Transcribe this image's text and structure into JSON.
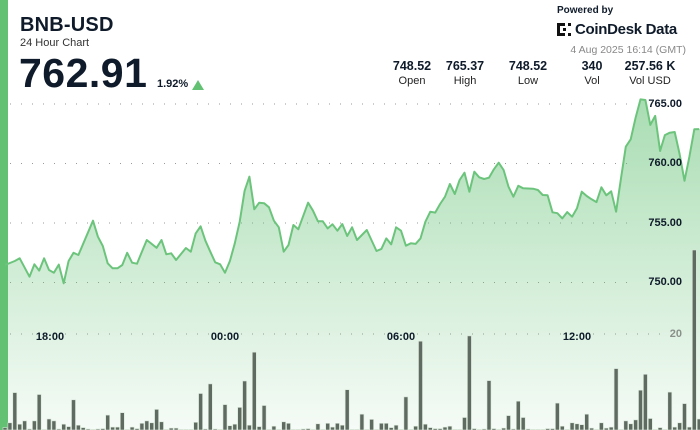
{
  "header": {
    "symbol": "BNB-USD",
    "subtitle": "24 Hour Chart",
    "price": "762.91",
    "change_pct": "1.92%",
    "change_direction": "up",
    "powered_by": "Powered by",
    "brand": "CoinDesk Data",
    "timestamp": "4 Aug 2025 16:14 (GMT)"
  },
  "stats": [
    {
      "value": "748.52",
      "label": "Open"
    },
    {
      "value": "765.37",
      "label": "High"
    },
    {
      "value": "748.52",
      "label": "Low"
    },
    {
      "value": "340",
      "label": "Vol"
    },
    {
      "value": "257.56 K",
      "label": "Vol USD"
    }
  ],
  "colors": {
    "accent": "#63c174",
    "line": "#6cc47c",
    "volume_bar": "#5f6a60",
    "up": "#63c174"
  },
  "chart_data": {
    "type": "line",
    "price_axis": {
      "ticks": [
        "765.00",
        "760.00",
        "755.00",
        "750.00"
      ],
      "ylim": [
        748,
        767
      ],
      "position": "right"
    },
    "volume_axis": {
      "ticks": [
        "20"
      ]
    },
    "x_ticks": [
      "18:00",
      "00:00",
      "06:00",
      "12:00"
    ],
    "grid": true,
    "price": [
      [
        "16:30",
        751.47
      ],
      [
        "16:50",
        751.81
      ],
      [
        "17:00",
        752.03
      ],
      [
        "17:20",
        750.49
      ],
      [
        "17:30",
        751.53
      ],
      [
        "17:40",
        751.0
      ],
      [
        "17:50",
        752.03
      ],
      [
        "18:00",
        751.05
      ],
      [
        "18:10",
        750.82
      ],
      [
        "18:20",
        751.5
      ],
      [
        "18:30",
        749.93
      ],
      [
        "18:40",
        751.81
      ],
      [
        "18:50",
        752.5
      ],
      [
        "19:00",
        752.31
      ],
      [
        "19:30",
        755.19
      ],
      [
        "19:40",
        753.85
      ],
      [
        "19:50",
        753.07
      ],
      [
        "20:00",
        751.61
      ],
      [
        "20:10",
        751.19
      ],
      [
        "20:20",
        751.19
      ],
      [
        "20:30",
        751.47
      ],
      [
        "20:40",
        752.5
      ],
      [
        "20:50",
        751.66
      ],
      [
        "21:00",
        751.58
      ],
      [
        "21:10",
        752.59
      ],
      [
        "21:20",
        753.57
      ],
      [
        "21:40",
        752.92
      ],
      [
        "21:50",
        753.57
      ],
      [
        "22:00",
        752.37
      ],
      [
        "22:10",
        752.45
      ],
      [
        "22:20",
        751.89
      ],
      [
        "22:40",
        752.9
      ],
      [
        "22:50",
        752.59
      ],
      [
        "23:00",
        754.13
      ],
      [
        "23:10",
        754.72
      ],
      [
        "23:20",
        753.51
      ],
      [
        "23:30",
        752.59
      ],
      [
        "23:40",
        751.7
      ],
      [
        "23:50",
        751.53
      ],
      [
        "00:00",
        750.82
      ],
      [
        "00:10",
        751.81
      ],
      [
        "00:20",
        753.29
      ],
      [
        "00:30",
        755.11
      ],
      [
        "00:40",
        757.71
      ],
      [
        "00:50",
        758.89
      ],
      [
        "01:00",
        756.15
      ],
      [
        "01:10",
        756.71
      ],
      [
        "01:20",
        756.66
      ],
      [
        "01:30",
        756.32
      ],
      [
        "01:40",
        755.19
      ],
      [
        "01:50",
        754.64
      ],
      [
        "02:00",
        752.59
      ],
      [
        "02:10",
        753.15
      ],
      [
        "02:20",
        754.83
      ],
      [
        "02:30",
        754.47
      ],
      [
        "02:50",
        756.71
      ],
      [
        "03:00",
        756.03
      ],
      [
        "03:10",
        755.14
      ],
      [
        "03:20",
        755.14
      ],
      [
        "03:30",
        754.55
      ],
      [
        "03:40",
        754.89
      ],
      [
        "03:50",
        754.35
      ],
      [
        "04:00",
        754.92
      ],
      [
        "04:10",
        753.91
      ],
      [
        "04:20",
        754.64
      ],
      [
        "04:30",
        753.57
      ],
      [
        "04:40",
        753.99
      ],
      [
        "04:50",
        754.41
      ],
      [
        "05:10",
        752.65
      ],
      [
        "05:20",
        752.82
      ],
      [
        "05:30",
        753.71
      ],
      [
        "05:40",
        753.21
      ],
      [
        "05:50",
        754.64
      ],
      [
        "06:00",
        754.35
      ],
      [
        "06:10",
        753.09
      ],
      [
        "06:20",
        753.29
      ],
      [
        "06:30",
        753.24
      ],
      [
        "06:40",
        753.71
      ],
      [
        "06:50",
        755.11
      ],
      [
        "07:00",
        755.95
      ],
      [
        "07:10",
        755.87
      ],
      [
        "07:20",
        756.6
      ],
      [
        "07:30",
        757.21
      ],
      [
        "07:40",
        758.28
      ],
      [
        "07:50",
        757.44
      ],
      [
        "08:00",
        758.61
      ],
      [
        "08:10",
        759.23
      ],
      [
        "08:20",
        757.63
      ],
      [
        "08:30",
        759.31
      ],
      [
        "08:40",
        758.84
      ],
      [
        "08:50",
        758.7
      ],
      [
        "09:00",
        758.81
      ],
      [
        "09:10",
        759.51
      ],
      [
        "09:20",
        760.07
      ],
      [
        "09:30",
        759.45
      ],
      [
        "09:40",
        758.05
      ],
      [
        "09:50",
        757.21
      ],
      [
        "10:00",
        758.13
      ],
      [
        "10:10",
        757.92
      ],
      [
        "10:30",
        757.88
      ],
      [
        "10:40",
        757.77
      ],
      [
        "10:50",
        757.35
      ],
      [
        "11:00",
        757.33
      ],
      [
        "11:10",
        755.9
      ],
      [
        "11:20",
        755.82
      ],
      [
        "11:30",
        755.39
      ],
      [
        "11:40",
        755.92
      ],
      [
        "11:50",
        755.53
      ],
      [
        "12:00",
        756.24
      ],
      [
        "12:10",
        757.63
      ],
      [
        "12:20",
        757.27
      ],
      [
        "12:30",
        756.99
      ],
      [
        "12:40",
        756.76
      ],
      [
        "12:50",
        758.0
      ],
      [
        "13:00",
        757.33
      ],
      [
        "13:10",
        757.66
      ],
      [
        "13:20",
        755.95
      ],
      [
        "13:30",
        758.76
      ],
      [
        "13:40",
        761.41
      ],
      [
        "13:50",
        762.03
      ],
      [
        "14:00",
        763.85
      ],
      [
        "14:10",
        765.39
      ],
      [
        "14:20",
        765.34
      ],
      [
        "14:30",
        763.24
      ],
      [
        "14:40",
        764.0
      ],
      [
        "14:50",
        761.05
      ],
      [
        "15:00",
        762.39
      ],
      [
        "15:10",
        762.59
      ],
      [
        "15:20",
        762.65
      ],
      [
        "15:30",
        760.8
      ],
      [
        "15:40",
        758.55
      ],
      [
        "15:50",
        760.57
      ],
      [
        "16:00",
        762.87
      ],
      [
        "16:10",
        762.89
      ]
    ],
    "volume": [
      [
        "16:30",
        0.5
      ],
      [
        "16:40",
        1.5
      ],
      [
        "16:50",
        7.8
      ],
      [
        "17:00",
        1.2
      ],
      [
        "17:10",
        1.9
      ],
      [
        "17:20",
        0.2
      ],
      [
        "17:30",
        1.9
      ],
      [
        "17:40",
        7.4
      ],
      [
        "17:50",
        0.1
      ],
      [
        "18:00",
        2.3
      ],
      [
        "18:10",
        1.9
      ],
      [
        "18:20",
        0.2
      ],
      [
        "18:30",
        1.2
      ],
      [
        "18:40",
        0.7
      ],
      [
        "18:50",
        6.3
      ],
      [
        "19:00",
        1.0
      ],
      [
        "19:10",
        0.5
      ],
      [
        "19:20",
        0.2
      ],
      [
        "19:30",
        0.1
      ],
      [
        "19:40",
        0.2
      ],
      [
        "19:50",
        0.3
      ],
      [
        "20:00",
        3.1
      ],
      [
        "20:10",
        0.6
      ],
      [
        "20:20",
        0.6
      ],
      [
        "20:30",
        3.6
      ],
      [
        "20:40",
        0.1
      ],
      [
        "20:50",
        0.6
      ],
      [
        "21:00",
        0.3
      ],
      [
        "21:10",
        1.4
      ],
      [
        "21:20",
        1.9
      ],
      [
        "21:30",
        1.5
      ],
      [
        "21:40",
        4.3
      ],
      [
        "21:50",
        1.7
      ],
      [
        "22:00",
        0.1
      ],
      [
        "22:10",
        0.4
      ],
      [
        "22:20",
        0.4
      ],
      [
        "22:30",
        0.1
      ],
      [
        "22:40",
        0.1
      ],
      [
        "22:50",
        0.1
      ],
      [
        "23:00",
        1.6
      ],
      [
        "23:10",
        7.6
      ],
      [
        "23:20",
        0.2
      ],
      [
        "23:30",
        9.6
      ],
      [
        "23:40",
        0.2
      ],
      [
        "23:50",
        0.1
      ],
      [
        "00:00",
        5.3
      ],
      [
        "00:10",
        0.9
      ],
      [
        "00:20",
        1.2
      ],
      [
        "00:30",
        4.7
      ],
      [
        "00:40",
        10.2
      ],
      [
        "00:50",
        1.0
      ],
      [
        "01:00",
        16.2
      ],
      [
        "01:10",
        0.7
      ],
      [
        "01:20",
        5.1
      ],
      [
        "01:30",
        0.1
      ],
      [
        "01:40",
        0.8
      ],
      [
        "01:50",
        0.1
      ],
      [
        "02:00",
        1.7
      ],
      [
        "02:10",
        1.4
      ],
      [
        "02:20",
        0.1
      ],
      [
        "02:30",
        0
      ],
      [
        "02:40",
        0.2
      ],
      [
        "02:50",
        0.3
      ],
      [
        "03:00",
        0.1
      ],
      [
        "03:10",
        1.3
      ],
      [
        "03:20",
        0.1
      ],
      [
        "03:30",
        1.4
      ],
      [
        "03:40",
        0.6
      ],
      [
        "03:50",
        1.4
      ],
      [
        "04:00",
        1.0
      ],
      [
        "04:10",
        8.4
      ],
      [
        "04:20",
        0.1
      ],
      [
        "04:30",
        0.1
      ],
      [
        "04:40",
        3.3
      ],
      [
        "04:50",
        0.1
      ],
      [
        "05:00",
        2.2
      ],
      [
        "05:10",
        0.1
      ],
      [
        "05:20",
        1.4
      ],
      [
        "05:30",
        1.4
      ],
      [
        "05:40",
        0.5
      ],
      [
        "05:50",
        1.0
      ],
      [
        "06:00",
        0.1
      ],
      [
        "06:10",
        6.9
      ],
      [
        "06:20",
        0.1
      ],
      [
        "06:30",
        0.8
      ],
      [
        "06:40",
        18.5
      ],
      [
        "06:50",
        1.2
      ],
      [
        "07:00",
        0.5
      ],
      [
        "07:10",
        0.3
      ],
      [
        "07:20",
        0.3
      ],
      [
        "07:30",
        0.6
      ],
      [
        "07:40",
        0.8
      ],
      [
        "07:50",
        0.1
      ],
      [
        "08:00",
        0.1
      ],
      [
        "08:10",
        2.6
      ],
      [
        "08:20",
        19.6
      ],
      [
        "08:30",
        0.3
      ],
      [
        "08:40",
        0
      ],
      [
        "08:50",
        0.2
      ],
      [
        "09:00",
        10.3
      ],
      [
        "09:10",
        0.3
      ],
      [
        "09:20",
        0
      ],
      [
        "09:30",
        0.4
      ],
      [
        "09:40",
        3.0
      ],
      [
        "09:50",
        0.2
      ],
      [
        "10:00",
        6.0
      ],
      [
        "10:10",
        2.6
      ],
      [
        "10:20",
        0.2
      ],
      [
        "10:30",
        0.1
      ],
      [
        "10:40",
        0.1
      ],
      [
        "10:50",
        0
      ],
      [
        "11:00",
        0.3
      ],
      [
        "11:10",
        0.3
      ],
      [
        "11:20",
        5.6
      ],
      [
        "11:30",
        0.8
      ],
      [
        "11:40",
        0
      ],
      [
        "11:50",
        1.5
      ],
      [
        "12:00",
        1.3
      ],
      [
        "12:10",
        1.1
      ],
      [
        "12:20",
        3.3
      ],
      [
        "12:30",
        0.4
      ],
      [
        "12:40",
        0.1
      ],
      [
        "12:50",
        1.5
      ],
      [
        "13:00",
        0.4
      ],
      [
        "13:10",
        0.6
      ],
      [
        "13:20",
        12.8
      ],
      [
        "13:30",
        0
      ],
      [
        "13:40",
        1.9
      ],
      [
        "13:50",
        1.3
      ],
      [
        "14:00",
        2.1
      ],
      [
        "14:10",
        8.3
      ],
      [
        "14:20",
        11.6
      ],
      [
        "14:30",
        2.4
      ],
      [
        "14:40",
        0
      ],
      [
        "14:50",
        0.5
      ],
      [
        "15:00",
        0
      ],
      [
        "15:10",
        7.9
      ],
      [
        "15:20",
        0.6
      ],
      [
        "15:30",
        1.5
      ],
      [
        "15:40",
        5.5
      ],
      [
        "15:50",
        0.6
      ],
      [
        "16:00",
        37.5
      ],
      [
        "16:10",
        2.3
      ]
    ]
  }
}
